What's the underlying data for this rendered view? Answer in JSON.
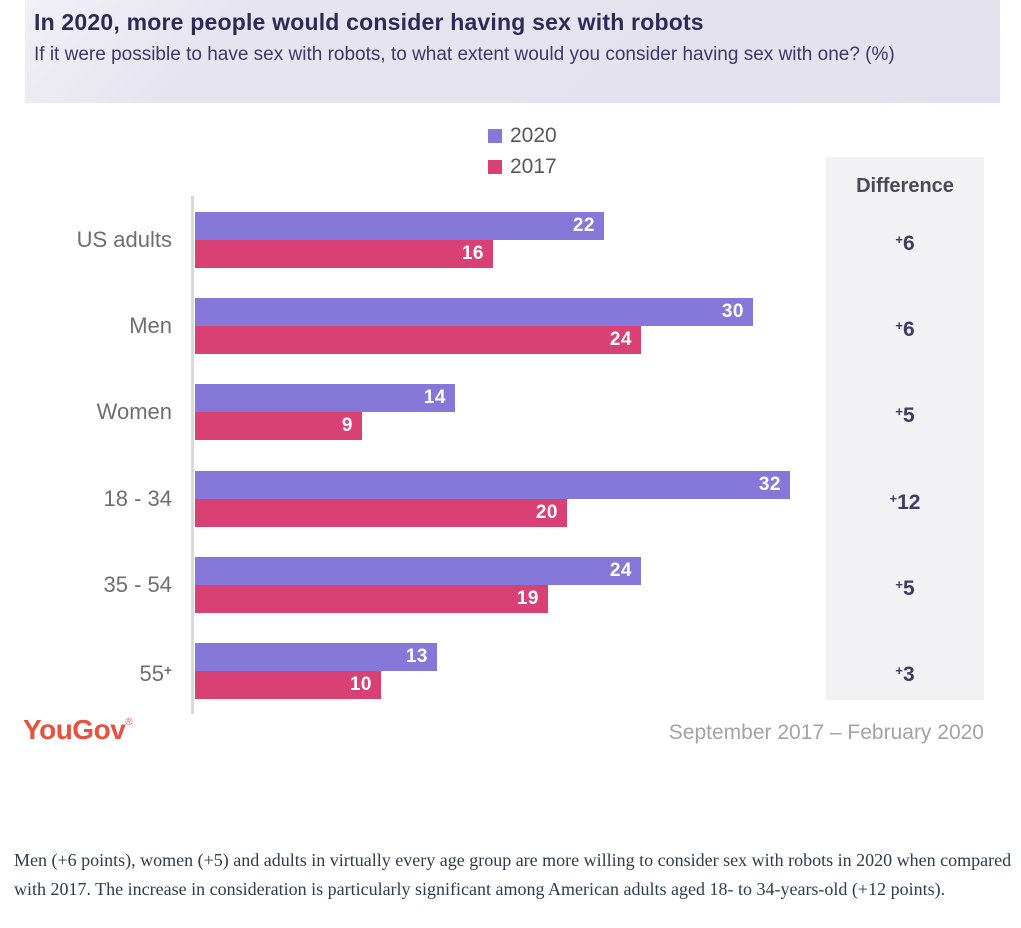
{
  "header": {
    "title": "In 2020, more people would consider having sex with robots",
    "subtitle": "If it were possible to have sex with robots, to what extent would you consider having sex with one? (%)"
  },
  "chart_data": {
    "type": "bar",
    "orientation": "horizontal",
    "title": "In 2020, more people would consider having sex with robots",
    "subtitle": "If it were possible to have sex with robots, to what extent would you consider having sex with one? (%)",
    "categories": [
      "US adults",
      "Men",
      "Women",
      "18 - 34",
      "35 - 54",
      "55+"
    ],
    "series": [
      {
        "name": "2020",
        "color": "#8678d9",
        "values": [
          22,
          30,
          14,
          32,
          24,
          13
        ]
      },
      {
        "name": "2017",
        "color": "#d94073",
        "values": [
          16,
          24,
          9,
          20,
          19,
          10
        ]
      }
    ],
    "differences": [
      "+6",
      "+6",
      "+5",
      "+12",
      "+5",
      "+3"
    ],
    "difference_header": "Difference",
    "xlim": [
      0,
      34
    ],
    "grid": false,
    "legend_position": "top-center",
    "value_labels": "inside-end"
  },
  "footer": {
    "brand": "YouGov",
    "brand_mark": "®",
    "date_range": "September 2017 – February 2020"
  },
  "caption": "Men (+6 points), women (+5) and adults in virtually every age group are more willing to consider sex with robots in 2020 when compared with 2017. The increase in consideration is particularly significant among American adults aged 18- to 34-years-old (+12 points)."
}
